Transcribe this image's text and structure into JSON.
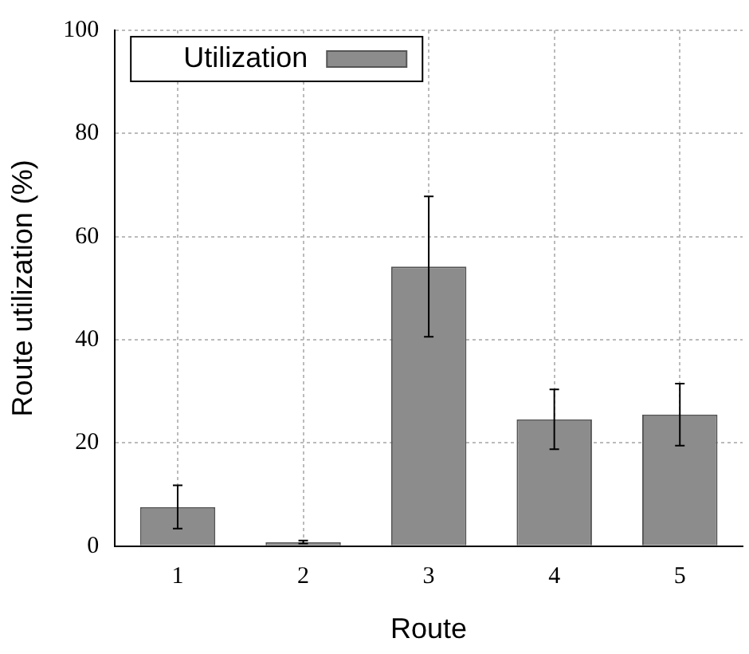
{
  "chart_data": {
    "type": "bar",
    "xlabel": "Route",
    "ylabel": "Route utilization (%)",
    "categories": [
      "1",
      "2",
      "3",
      "4",
      "5"
    ],
    "series": [
      {
        "name": "Utilization",
        "color": "#8c8c8c",
        "values": [
          7.6,
          0.8,
          54.2,
          24.6,
          25.5
        ],
        "errors": [
          4.2,
          0.3,
          13.6,
          5.8,
          6.0
        ]
      }
    ],
    "ylim": [
      0,
      100
    ],
    "yticks": [
      0,
      20,
      40,
      60,
      80,
      100
    ],
    "grid": true,
    "legend": "top left"
  }
}
